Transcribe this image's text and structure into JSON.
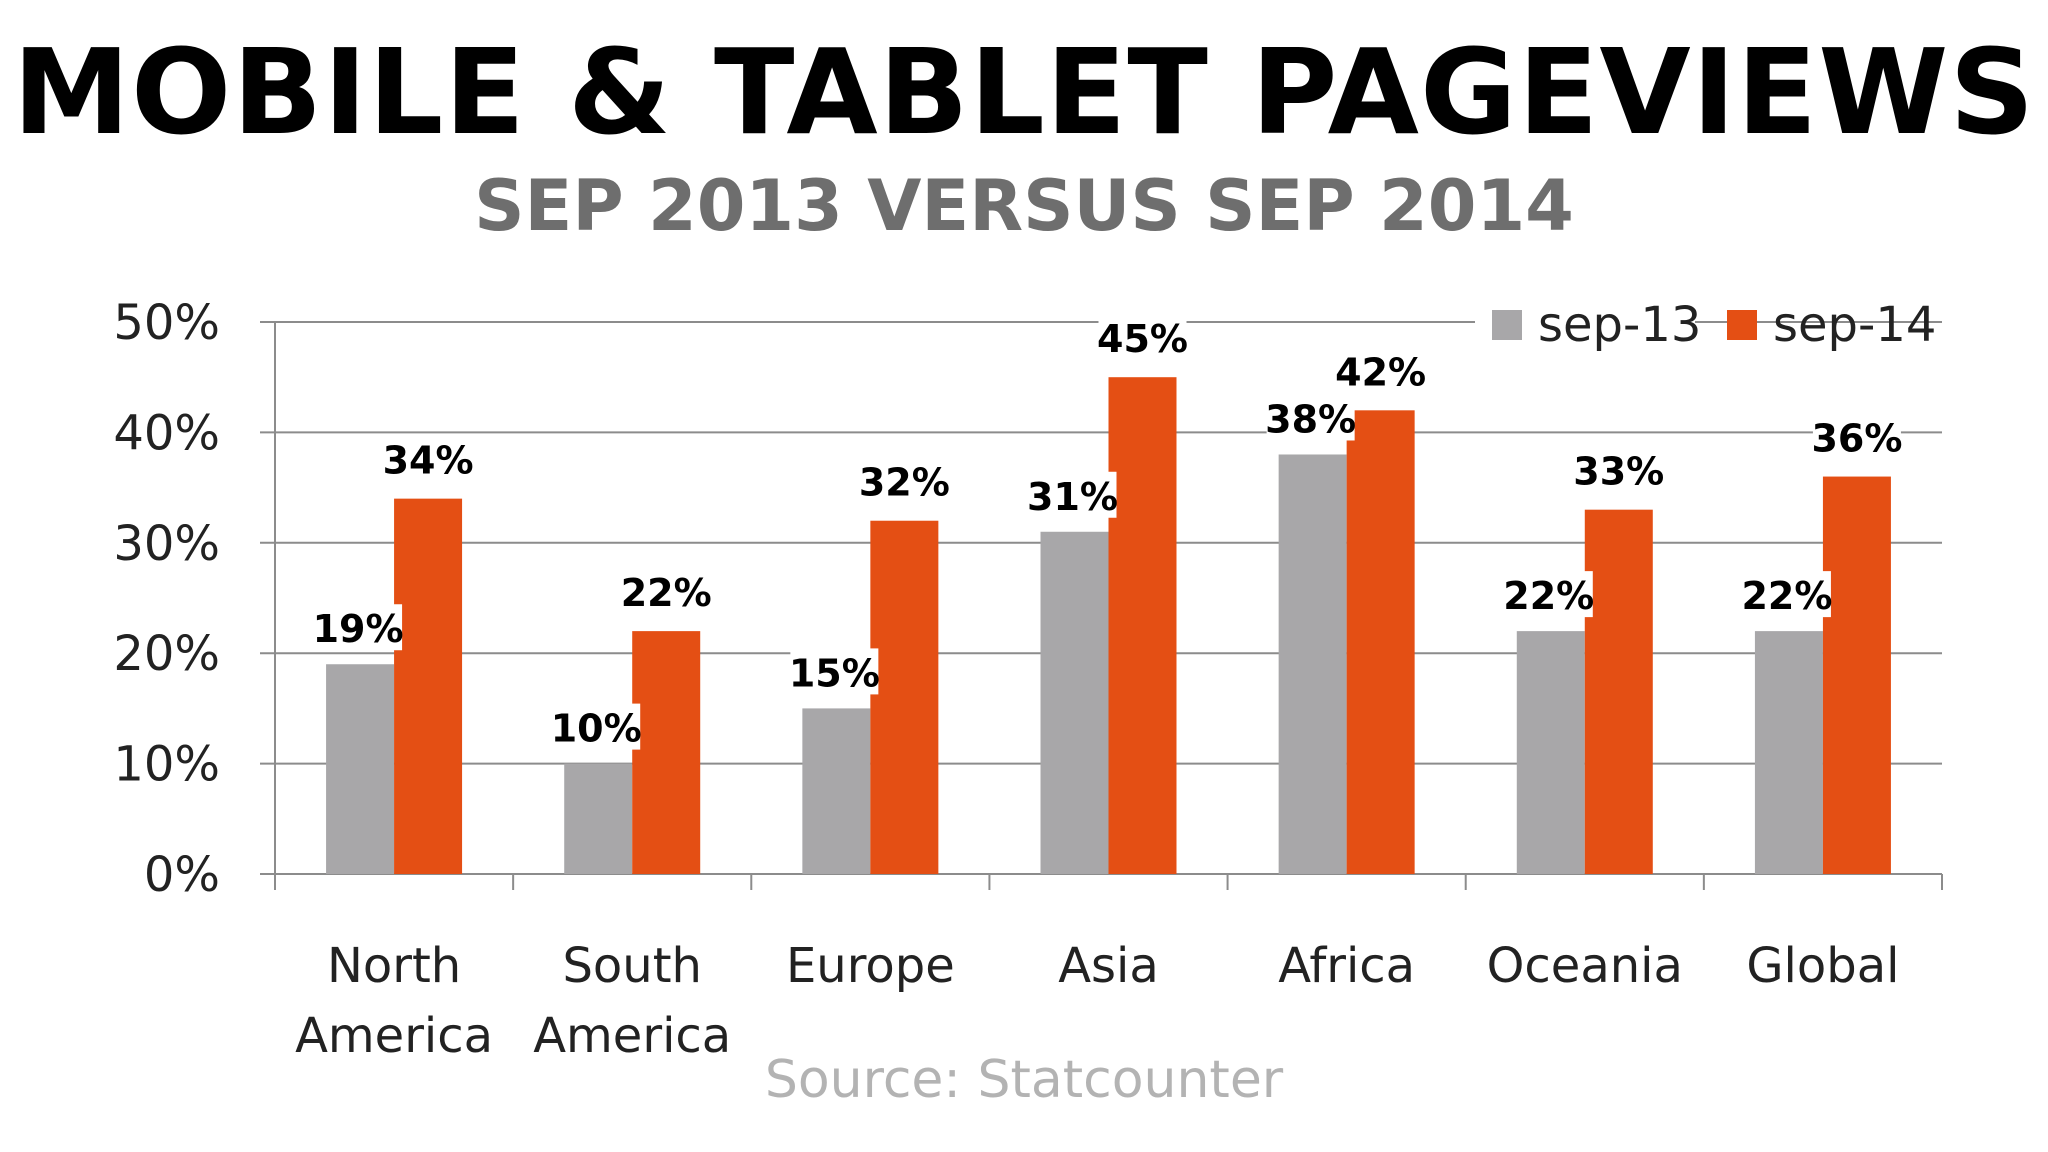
{
  "title": "MOBILE & TABLET PAGEVIEWS",
  "subtitle": "SEP 2013 VERSUS SEP 2014",
  "source": "Source: Statcounter",
  "colors": {
    "sep13": "#a8a7a9",
    "sep14": "#e44f14",
    "grid": "#8c8c8c"
  },
  "chart_data": {
    "type": "bar",
    "categories": [
      [
        "North",
        "America"
      ],
      [
        "South",
        "America"
      ],
      [
        "Europe"
      ],
      [
        "Asia"
      ],
      [
        "Africa"
      ],
      [
        "Oceania"
      ],
      [
        "Global"
      ]
    ],
    "series": [
      {
        "name": "sep-13",
        "values": [
          19,
          10,
          15,
          31,
          38,
          22,
          22
        ],
        "labels": [
          "19%",
          "10%",
          "15%",
          "31%",
          "38%",
          "22%",
          "22%"
        ]
      },
      {
        "name": "sep-14",
        "values": [
          34,
          22,
          32,
          45,
          42,
          33,
          36
        ],
        "labels": [
          "34%",
          "22%",
          "32%",
          "45%",
          "42%",
          "33%",
          "36%"
        ]
      }
    ],
    "yticks": [
      "0%",
      "10%",
      "20%",
      "30%",
      "40%",
      "50%"
    ],
    "ylim": [
      0,
      50
    ],
    "grid": true,
    "legend": "top-right"
  }
}
